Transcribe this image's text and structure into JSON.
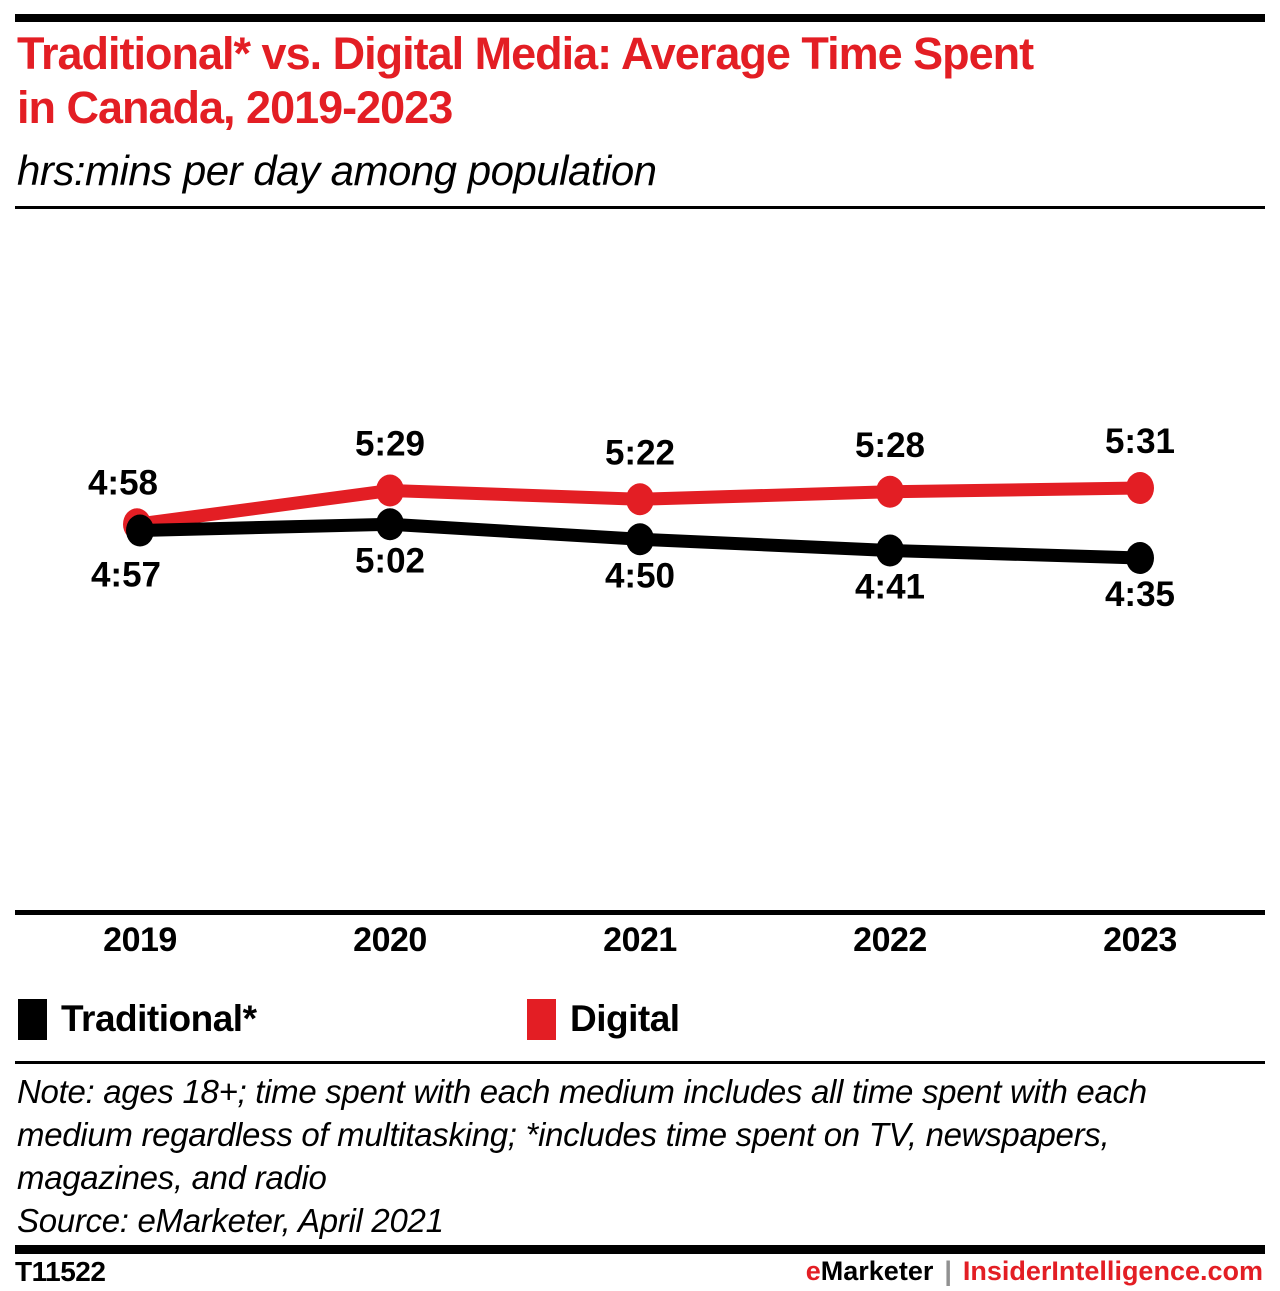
{
  "colors": {
    "accent_red": "#e31e24",
    "text_black": "#000000",
    "separator_gray": "#919191"
  },
  "header": {
    "title_lines": [
      "Traditional* vs. Digital Media: Average Time Spent",
      "in Canada, 2019-2023"
    ],
    "subtitle": "hrs:mins per day among population"
  },
  "chart_data": {
    "type": "line",
    "title": "Traditional* vs. Digital Media: Average Time Spent in Canada, 2019-2023",
    "subtitle": "hrs:mins per day among population",
    "value_format": "hrs:mins per day",
    "x": [
      "2019",
      "2020",
      "2021",
      "2022",
      "2023"
    ],
    "series": [
      {
        "name": "Traditional*",
        "color": "#000000",
        "values": [
          "4:57",
          "5:02",
          "4:50",
          "4:41",
          "4:35"
        ]
      },
      {
        "name": "Digital",
        "color": "#e31e24",
        "values": [
          "4:58",
          "5:29",
          "5:22",
          "5:28",
          "5:31"
        ]
      }
    ],
    "xlabel": "",
    "ylabel": "",
    "grid": false,
    "data_labels": true,
    "legend_position": "bottom"
  },
  "footer": {
    "note_lines": [
      "Note: ages 18+; time spent with each medium includes all time spent with each",
      "medium regardless of multitasking; *includes time spent on TV, newspapers,",
      "magazines, and radio"
    ],
    "source": "Source: eMarketer, April 2021",
    "chart_id": "T11522",
    "brand": {
      "prefix": "e",
      "rest": "Marketer",
      "separator": "|",
      "site": "InsiderIntelligence.com"
    }
  }
}
